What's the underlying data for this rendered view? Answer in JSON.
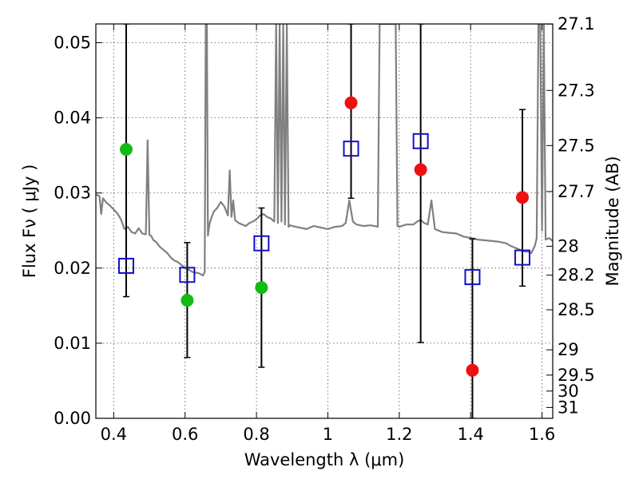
{
  "chart_data": {
    "type": "scatter",
    "title": "",
    "xlabel": "Wavelength  λ (μm)",
    "ylabel": "Flux  Fν  ( μJy )",
    "y2label": "Magnitude (AB)",
    "xlim": [
      0.35,
      1.63
    ],
    "ylim": [
      0.0,
      0.0525
    ],
    "grid": true,
    "grid_style": "dotted",
    "x_ticks": [
      0.4,
      0.6,
      0.8,
      1.0,
      1.2,
      1.4,
      1.6
    ],
    "x_tick_labels": [
      "0.4",
      "0.6",
      "0.8",
      "1",
      "1.2",
      "1.4",
      "1.6"
    ],
    "y_ticks": [
      0.0,
      0.01,
      0.02,
      0.03,
      0.04,
      0.05
    ],
    "y_tick_labels": [
      "0.00",
      "0.01",
      "0.02",
      "0.03",
      "0.04",
      "0.05"
    ],
    "y2_ticks": [
      27.1,
      27.3,
      27.5,
      27.7,
      28,
      28.2,
      28.5,
      29,
      29.5,
      30,
      31
    ],
    "y2_tick_labels": [
      "27.1",
      "27.3",
      "27.5",
      "27.7",
      "28",
      "28.2",
      "28.5",
      "29",
      "29.5",
      "30",
      "31"
    ],
    "colors": {
      "model": "#808080",
      "photometry": "#1010cc",
      "green_points": "#11bb11",
      "red_points": "#ee1111",
      "errorbars": "#000000"
    },
    "photometry": {
      "x": [
        0.435,
        0.606,
        0.814,
        1.065,
        1.26,
        1.405,
        1.545
      ],
      "y": [
        0.0203,
        0.0191,
        0.0233,
        0.0359,
        0.0369,
        0.0188,
        0.0214
      ],
      "yerr_low": [
        0.0162,
        0.0081,
        0.0068,
        0.0293,
        0.0101,
        0.0,
        0.0176
      ],
      "yerr_high": [
        0.0525,
        0.0234,
        0.028,
        0.0525,
        0.0525,
        0.0239,
        0.0411
      ]
    },
    "green_points": {
      "x": [
        0.435,
        0.606,
        0.814
      ],
      "y": [
        0.0358,
        0.0157,
        0.0174
      ]
    },
    "red_points": {
      "x": [
        1.065,
        1.26,
        1.405,
        1.545
      ],
      "y": [
        0.042,
        0.0331,
        0.0064,
        0.0294
      ]
    },
    "model_spectrum": {
      "x": [
        0.35,
        0.36,
        0.365,
        0.37,
        0.38,
        0.39,
        0.4,
        0.41,
        0.42,
        0.43,
        0.44,
        0.45,
        0.46,
        0.47,
        0.48,
        0.49,
        0.495,
        0.5,
        0.505,
        0.51,
        0.52,
        0.53,
        0.54,
        0.55,
        0.56,
        0.57,
        0.58,
        0.59,
        0.6,
        0.61,
        0.62,
        0.63,
        0.64,
        0.65,
        0.655,
        0.658,
        0.661,
        0.664,
        0.667,
        0.67,
        0.68,
        0.69,
        0.7,
        0.71,
        0.72,
        0.725,
        0.73,
        0.735,
        0.74,
        0.75,
        0.76,
        0.77,
        0.78,
        0.79,
        0.8,
        0.81,
        0.82,
        0.83,
        0.84,
        0.85,
        0.855,
        0.86,
        0.865,
        0.87,
        0.875,
        0.88,
        0.885,
        0.89,
        0.895,
        0.9,
        0.92,
        0.94,
        0.96,
        0.98,
        1.0,
        1.02,
        1.04,
        1.05,
        1.06,
        1.07,
        1.08,
        1.09,
        1.1,
        1.12,
        1.14,
        1.145,
        1.15,
        1.155,
        1.16,
        1.18,
        1.19,
        1.195,
        1.2,
        1.22,
        1.24,
        1.25,
        1.26,
        1.27,
        1.28,
        1.29,
        1.3,
        1.31,
        1.32,
        1.34,
        1.36,
        1.38,
        1.4,
        1.42,
        1.44,
        1.46,
        1.48,
        1.5,
        1.51,
        1.52,
        1.53,
        1.54,
        1.55,
        1.56,
        1.57,
        1.58,
        1.585,
        1.59,
        1.595,
        1.6,
        1.605,
        1.61,
        1.62,
        1.63
      ],
      "y": [
        0.0298,
        0.0296,
        0.0272,
        0.0293,
        0.0287,
        0.0283,
        0.0278,
        0.0273,
        0.0265,
        0.0252,
        0.0255,
        0.0248,
        0.0246,
        0.0253,
        0.0246,
        0.0245,
        0.037,
        0.0244,
        0.0243,
        0.0238,
        0.0234,
        0.0228,
        0.0224,
        0.022,
        0.0214,
        0.021,
        0.0208,
        0.0204,
        0.02,
        0.0198,
        0.0195,
        0.0194,
        0.0193,
        0.019,
        0.0195,
        0.0525,
        0.0525,
        0.0243,
        0.0255,
        0.0262,
        0.0275,
        0.028,
        0.0288,
        0.0282,
        0.027,
        0.033,
        0.0268,
        0.029,
        0.0264,
        0.026,
        0.0258,
        0.0256,
        0.026,
        0.0262,
        0.0265,
        0.027,
        0.0272,
        0.0268,
        0.0266,
        0.0262,
        0.0525,
        0.026,
        0.0525,
        0.0262,
        0.0525,
        0.0258,
        0.0525,
        0.0255,
        0.0257,
        0.0256,
        0.0254,
        0.0252,
        0.0256,
        0.0254,
        0.0252,
        0.0255,
        0.0256,
        0.026,
        0.029,
        0.0262,
        0.0258,
        0.0257,
        0.0256,
        0.0257,
        0.0255,
        0.0525,
        0.0525,
        0.0525,
        0.0525,
        0.0525,
        0.0525,
        0.0256,
        0.0255,
        0.0258,
        0.0258,
        0.0262,
        0.0264,
        0.026,
        0.0258,
        0.029,
        0.0252,
        0.025,
        0.0248,
        0.0247,
        0.0246,
        0.0242,
        0.024,
        0.0238,
        0.0237,
        0.0236,
        0.0235,
        0.0233,
        0.023,
        0.0228,
        0.0226,
        0.0224,
        0.0222,
        0.0222,
        0.022,
        0.023,
        0.024,
        0.0525,
        0.0525,
        0.025,
        0.0525,
        0.0238,
        0.024,
        0.0236
      ]
    }
  }
}
